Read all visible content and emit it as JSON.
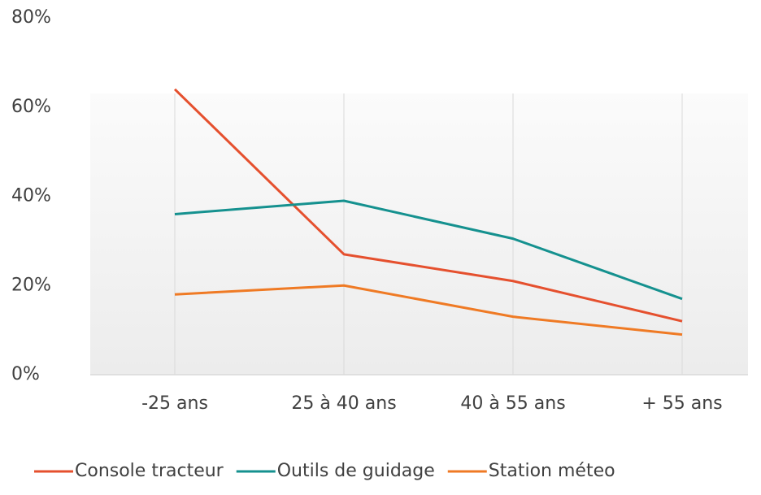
{
  "chart_data": {
    "type": "line",
    "categories": [
      "-25 ans",
      "25 à 40 ans",
      "40 à 55 ans",
      "+ 55 ans"
    ],
    "series": [
      {
        "name": "Console tracteur",
        "color": "#e5502e",
        "values": [
          64,
          27,
          21,
          12
        ]
      },
      {
        "name": "Outils de guidage",
        "color": "#15918f",
        "values": [
          36,
          39,
          30.5,
          17
        ]
      },
      {
        "name": "Station méteo",
        "color": "#ef7a24",
        "values": [
          18,
          20,
          13,
          9
        ]
      }
    ],
    "ylim": [
      0,
      80
    ],
    "yticks": [
      {
        "value": 0,
        "label": "0%"
      },
      {
        "value": 20,
        "label": "20%"
      },
      {
        "value": 40,
        "label": "40%"
      },
      {
        "value": 60,
        "label": "60%"
      },
      {
        "value": 80,
        "label": "80%"
      }
    ],
    "legend": "bottom"
  }
}
